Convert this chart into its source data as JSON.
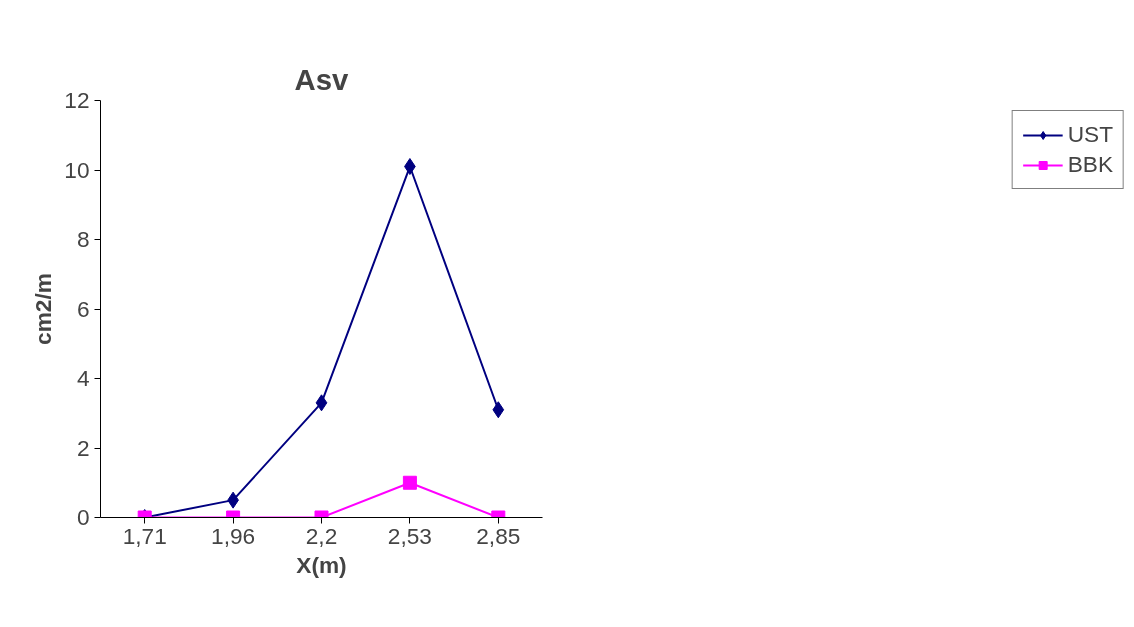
{
  "chart_data": {
    "type": "line",
    "title": "Asv",
    "xlabel": "X(m)",
    "ylabel": "cm2/m",
    "categories": [
      "1,71",
      "1,96",
      "2,2",
      "2,53",
      "2,85"
    ],
    "series": [
      {
        "name": "UST",
        "color": "#000080",
        "marker": "diamond",
        "values": [
          0,
          0.5,
          3.3,
          10.1,
          3.1
        ]
      },
      {
        "name": "BBK",
        "color": "#ff00ff",
        "marker": "square",
        "values": [
          0,
          0,
          0,
          1,
          0
        ]
      }
    ],
    "ylim": [
      0,
      12
    ],
    "yticks": [
      0,
      2,
      4,
      6,
      8,
      10,
      12
    ],
    "grid": false,
    "legend": "right",
    "line_style": "solid"
  }
}
